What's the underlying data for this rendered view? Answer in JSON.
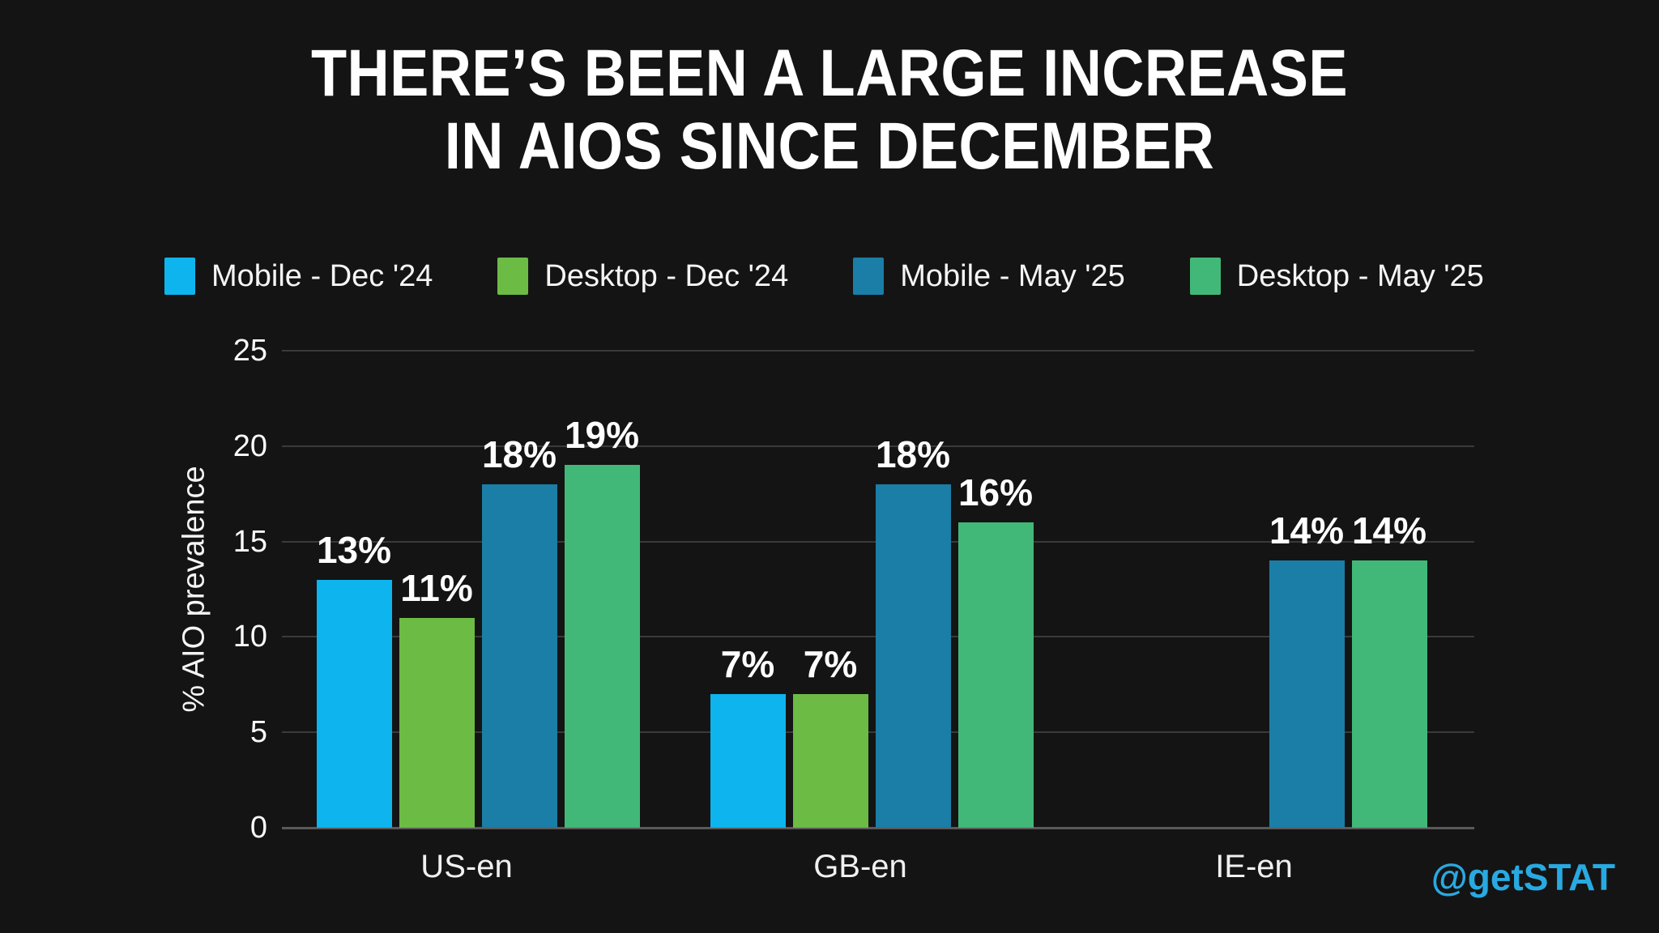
{
  "title": {
    "line1": "THERE’S BEEN A LARGE INCREASE",
    "line2": "IN AIOS SINCE DECEMBER"
  },
  "watermark": "@getSTAT",
  "colors": {
    "background": "#141414",
    "text": "#ffffff",
    "gridline": "#3a3a3a",
    "baseline": "#595959",
    "watermark": "#29a9e1"
  },
  "chart_data": {
    "type": "bar",
    "categories": [
      "US-en",
      "GB-en",
      "IE-en"
    ],
    "series": [
      {
        "name": "Mobile - Dec '24",
        "color": "#0db4ed",
        "values": [
          13,
          7,
          null
        ]
      },
      {
        "name": "Desktop - Dec '24",
        "color": "#6cbb45",
        "values": [
          11,
          7,
          null
        ]
      },
      {
        "name": "Mobile - May '25",
        "color": "#1a7ea6",
        "values": [
          18,
          18,
          14
        ]
      },
      {
        "name": "Desktop - May '25",
        "color": "#41b878",
        "values": [
          19,
          16,
          14
        ]
      }
    ],
    "ylabel": "% AIO prevalence",
    "ylim": [
      0,
      25
    ],
    "yticks": [
      0,
      5,
      10,
      15,
      20,
      25
    ],
    "grid": true,
    "legend_position": "top",
    "data_label_format": "{v}%"
  }
}
